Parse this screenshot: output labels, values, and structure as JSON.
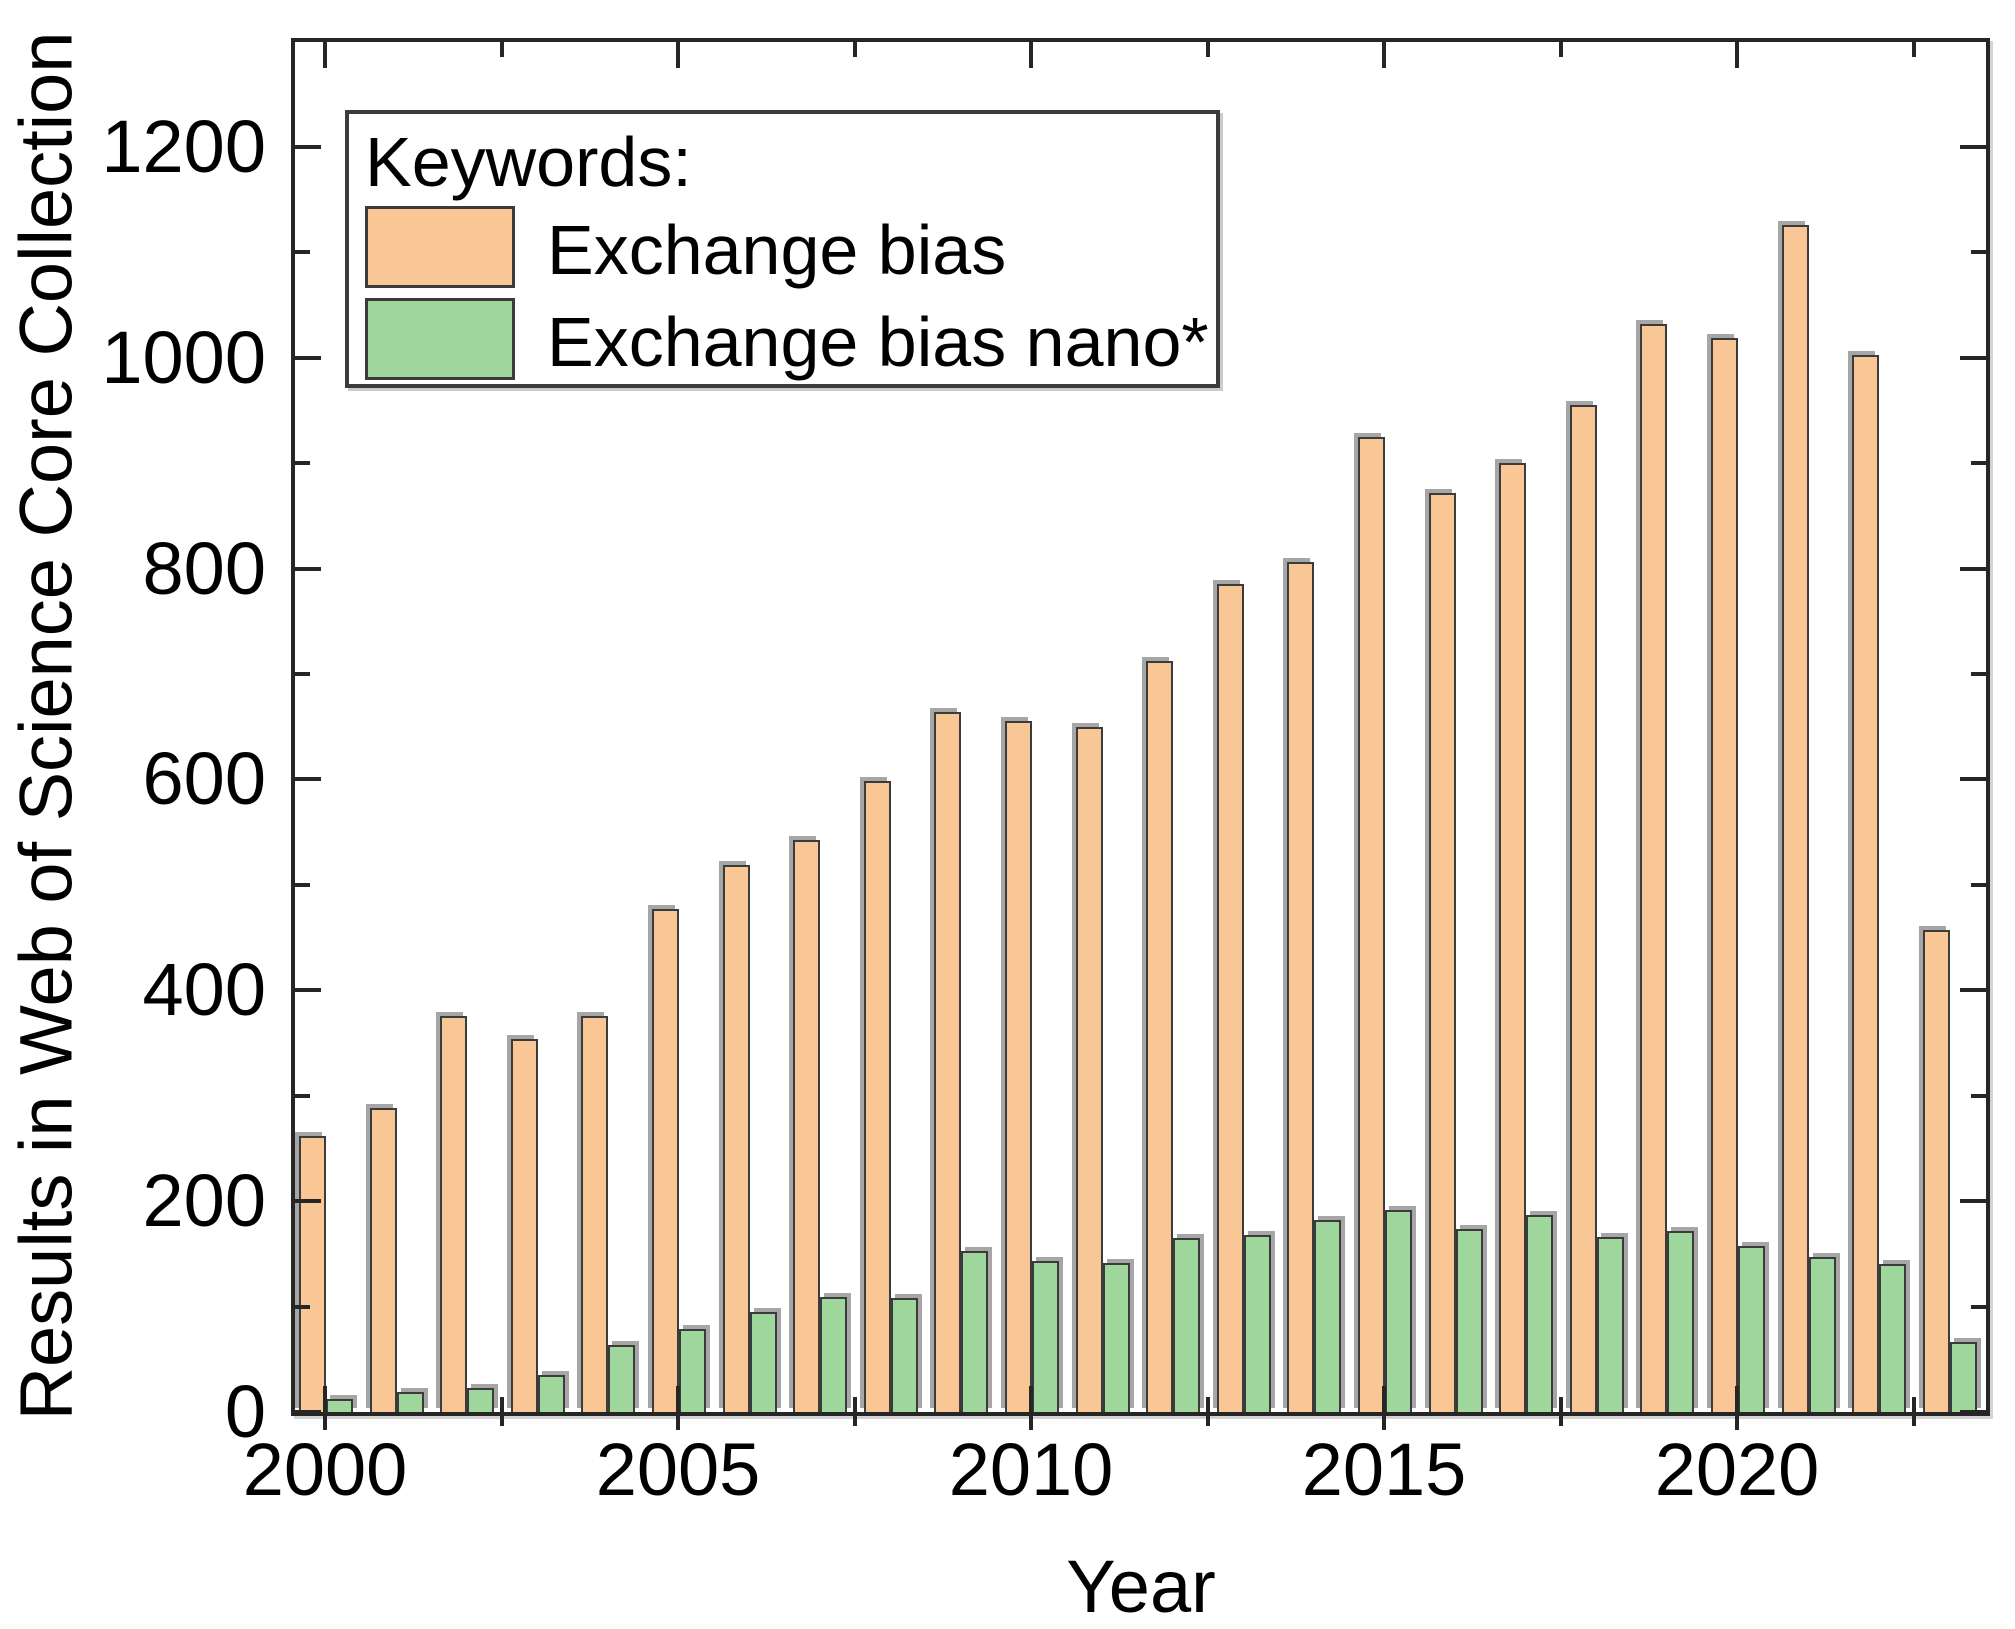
{
  "figure": {
    "y_axis_title": "Results in Web of Science Core Collection",
    "x_axis_title": "Year"
  },
  "legend": {
    "title": "Keywords:",
    "entries": [
      {
        "label": "Exchange bias",
        "color": "#f8c795"
      },
      {
        "label": "Exchange bias nano*",
        "color": "#9fd69c"
      }
    ]
  },
  "chart_data": {
    "type": "bar",
    "title": "",
    "xlabel": "Year",
    "ylabel": "Results in Web of Science Core Collection",
    "categories": [
      2000,
      2001,
      2002,
      2003,
      2004,
      2005,
      2006,
      2007,
      2008,
      2009,
      2010,
      2011,
      2012,
      2013,
      2014,
      2015,
      2016,
      2017,
      2018,
      2019,
      2020,
      2021,
      2022,
      2023
    ],
    "series": [
      {
        "name": "Exchange bias",
        "color": "#f8c795",
        "values": [
          262,
          288,
          376,
          354,
          376,
          477,
          519,
          543,
          599,
          664,
          655,
          650,
          712,
          785,
          806,
          925,
          872,
          900,
          955,
          1032,
          1019,
          1126,
          1003,
          457
        ]
      },
      {
        "name": "Exchange bias nano*",
        "color": "#9fd69c",
        "values": [
          12,
          19,
          23,
          35,
          64,
          79,
          95,
          109,
          108,
          153,
          143,
          141,
          165,
          168,
          182,
          192,
          174,
          187,
          166,
          172,
          157,
          147,
          140,
          66
        ]
      }
    ],
    "ylim": [
      0,
      1300
    ],
    "xlim": [
      1999.5,
      2023.6
    ],
    "y_major_ticks": [
      0,
      200,
      400,
      600,
      800,
      1000,
      1200
    ],
    "y_minor_ticks": [
      100,
      300,
      500,
      700,
      900,
      1100
    ],
    "x_major_ticks": [
      2000,
      2005,
      2010,
      2015,
      2020
    ],
    "x_minor_ticks": [
      2002.5,
      2007.5,
      2012.5,
      2017.5,
      2022.5
    ],
    "grid": false,
    "legend_position": "upper-left",
    "bar_edge_color": "#3b3b3b",
    "shadow_color": "#999999",
    "axis_color": "#262626"
  }
}
